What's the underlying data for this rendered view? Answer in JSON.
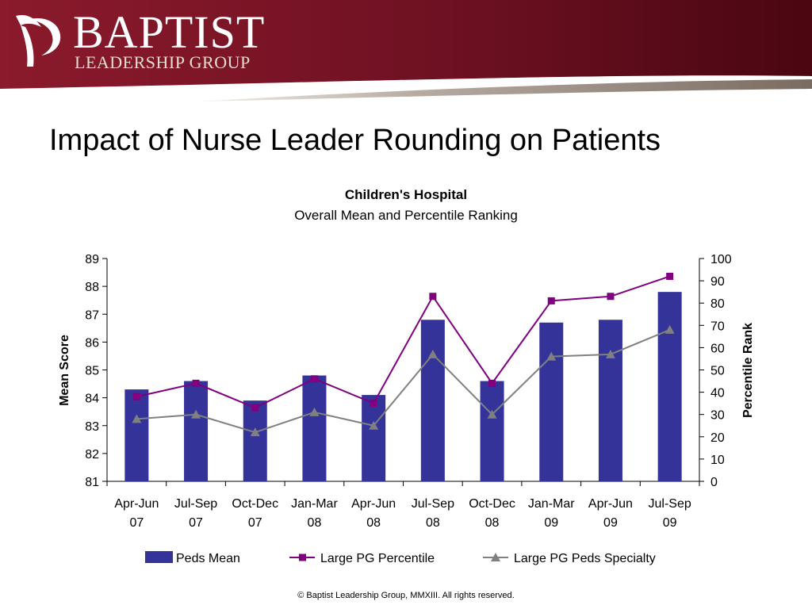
{
  "brand": {
    "name": "BAPTIST",
    "subtitle": "LEADERSHIP GROUP",
    "colors": {
      "banner_dark": "#5b0a18",
      "banner_mid": "#8a1a2c",
      "stripe": "#8a7a6e"
    }
  },
  "slide": {
    "title": "Impact of Nurse Leader Rounding on Patients"
  },
  "chart_data": {
    "type": "bar",
    "title": "Children's Hospital",
    "subtitle": "Overall Mean and Percentile Ranking",
    "categories": [
      [
        "Apr-Jun",
        "07"
      ],
      [
        "Jul-Sep",
        "07"
      ],
      [
        "Oct-Dec",
        "07"
      ],
      [
        "Jan-Mar",
        "08"
      ],
      [
        "Apr-Jun",
        "08"
      ],
      [
        "Jul-Sep",
        "08"
      ],
      [
        "Oct-Dec",
        "08"
      ],
      [
        "Jan-Mar",
        "09"
      ],
      [
        "Apr-Jun",
        "09"
      ],
      [
        "Jul-Sep",
        "09"
      ]
    ],
    "ylabel_left": "Mean Score",
    "ylabel_right": "Percentile Rank",
    "ylim_left": [
      81,
      89
    ],
    "yticks_left": [
      81,
      82,
      83,
      84,
      85,
      86,
      87,
      88,
      89
    ],
    "ylim_right": [
      0,
      100
    ],
    "yticks_right": [
      0,
      10,
      20,
      30,
      40,
      50,
      60,
      70,
      80,
      90,
      100
    ],
    "legend_position": "bottom",
    "series": [
      {
        "name": "Peds Mean",
        "kind": "bar",
        "axis": "left",
        "color": "#333399",
        "values": [
          84.3,
          84.6,
          83.9,
          84.8,
          84.1,
          86.8,
          84.6,
          86.7,
          86.8,
          87.8
        ]
      },
      {
        "name": "Large PG Percentile",
        "kind": "line",
        "marker": "square",
        "axis": "right",
        "color": "#800080",
        "values": [
          38,
          44,
          33,
          46,
          35,
          83,
          44,
          81,
          83,
          92
        ]
      },
      {
        "name": "Large PG Peds Specialty",
        "kind": "line",
        "marker": "triangle",
        "axis": "right",
        "color": "#808080",
        "values": [
          28,
          30,
          22,
          31,
          25,
          57,
          30,
          56,
          57,
          68
        ]
      }
    ]
  },
  "footer": {
    "copyright": "© Baptist Leadership Group, MMXIII.  All rights reserved."
  }
}
